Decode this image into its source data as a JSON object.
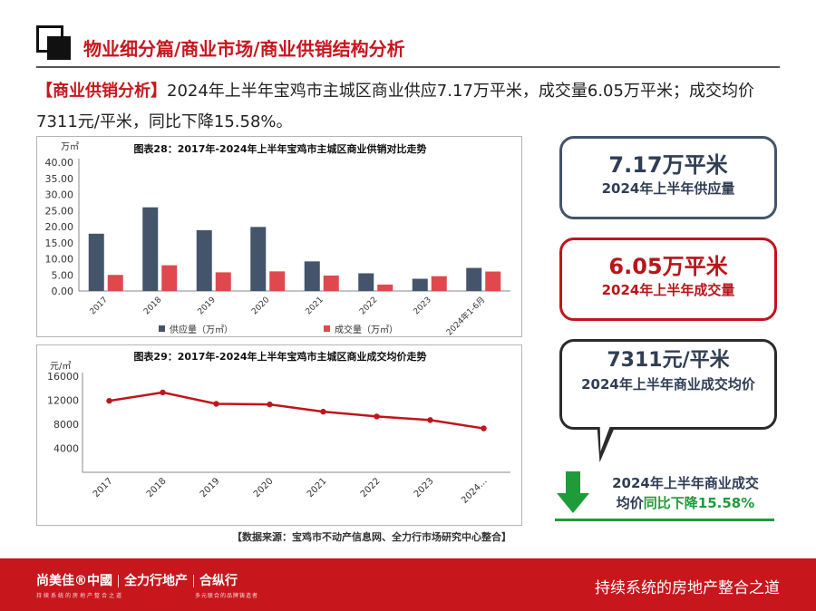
{
  "header": {
    "title": "物业细分篇/商业市场/商业供销结构分析"
  },
  "intro": {
    "tag": "【商业供销分析】",
    "text": "2024年上半年宝鸡市主城区商业供应7.17万平米，成交量6.05万平米；成交均价7311元/平米，同比下降15.58%。"
  },
  "cards": [
    {
      "value": "7.17万平米",
      "label": "2024年上半年供应量",
      "color": "#44546a"
    },
    {
      "value": "6.05万平米",
      "label": "2024年上半年成交量",
      "color": "#c0151c"
    },
    {
      "value": "7311元/平米",
      "label": "2024年上半年商业成交均价",
      "color": "#2b2b2b"
    }
  ],
  "yoy": {
    "line1": "2024年上半年商业成交",
    "line2_a": "均价",
    "line2_b": "同比下降15.58%",
    "accent": "#1f9b3a"
  },
  "source": "【数据来源：宝鸡市不动产信息网、全力行市场研究中心整合】",
  "footer": {
    "brand1": "尚美佳®中國",
    "brand2": "全力行地产",
    "brand3": "合纵行",
    "sub1": "持续系统的房地产整合之道",
    "sub2": "多元联合的品牌铸造者",
    "slogan": "持续系统的房地产整合之道"
  },
  "chart_data": [
    {
      "type": "bar",
      "title": "图表28：2017年-2024年上半年宝鸡市主城区商业供销对比走势",
      "ylabel": "万㎡",
      "ylim": [
        0,
        40
      ],
      "yticks": [
        "0.00",
        "5.00",
        "10.00",
        "15.00",
        "20.00",
        "25.00",
        "30.00",
        "35.00",
        "40.00"
      ],
      "categories": [
        "2017",
        "2018",
        "2019",
        "2020",
        "2021",
        "2022",
        "2023",
        "2024年1-6月"
      ],
      "series": [
        {
          "name": "供应量（万㎡）",
          "color": "#44546a",
          "values": [
            17.8,
            26.0,
            18.9,
            19.9,
            9.2,
            5.5,
            3.8,
            7.17
          ]
        },
        {
          "name": "成交量（万㎡）",
          "color": "#e0484e",
          "values": [
            5.0,
            8.0,
            5.8,
            6.1,
            4.8,
            2.0,
            4.6,
            6.05
          ]
        }
      ],
      "legend": "bottom"
    },
    {
      "type": "line",
      "title": "图表29：2017年-2024年上半年宝鸡市主城区商业成交均价走势",
      "ylabel": "元/㎡",
      "ylim": [
        0,
        16000
      ],
      "yticks": [
        "4000",
        "8000",
        "12000",
        "16000"
      ],
      "categories": [
        "2017",
        "2018",
        "2019",
        "2020",
        "2021",
        "2022",
        "2023",
        "2024..."
      ],
      "series": [
        {
          "name": "",
          "color": "#c0151c",
          "values": [
            11900,
            13300,
            11400,
            11300,
            10100,
            9300,
            8700,
            7311
          ]
        }
      ]
    }
  ]
}
